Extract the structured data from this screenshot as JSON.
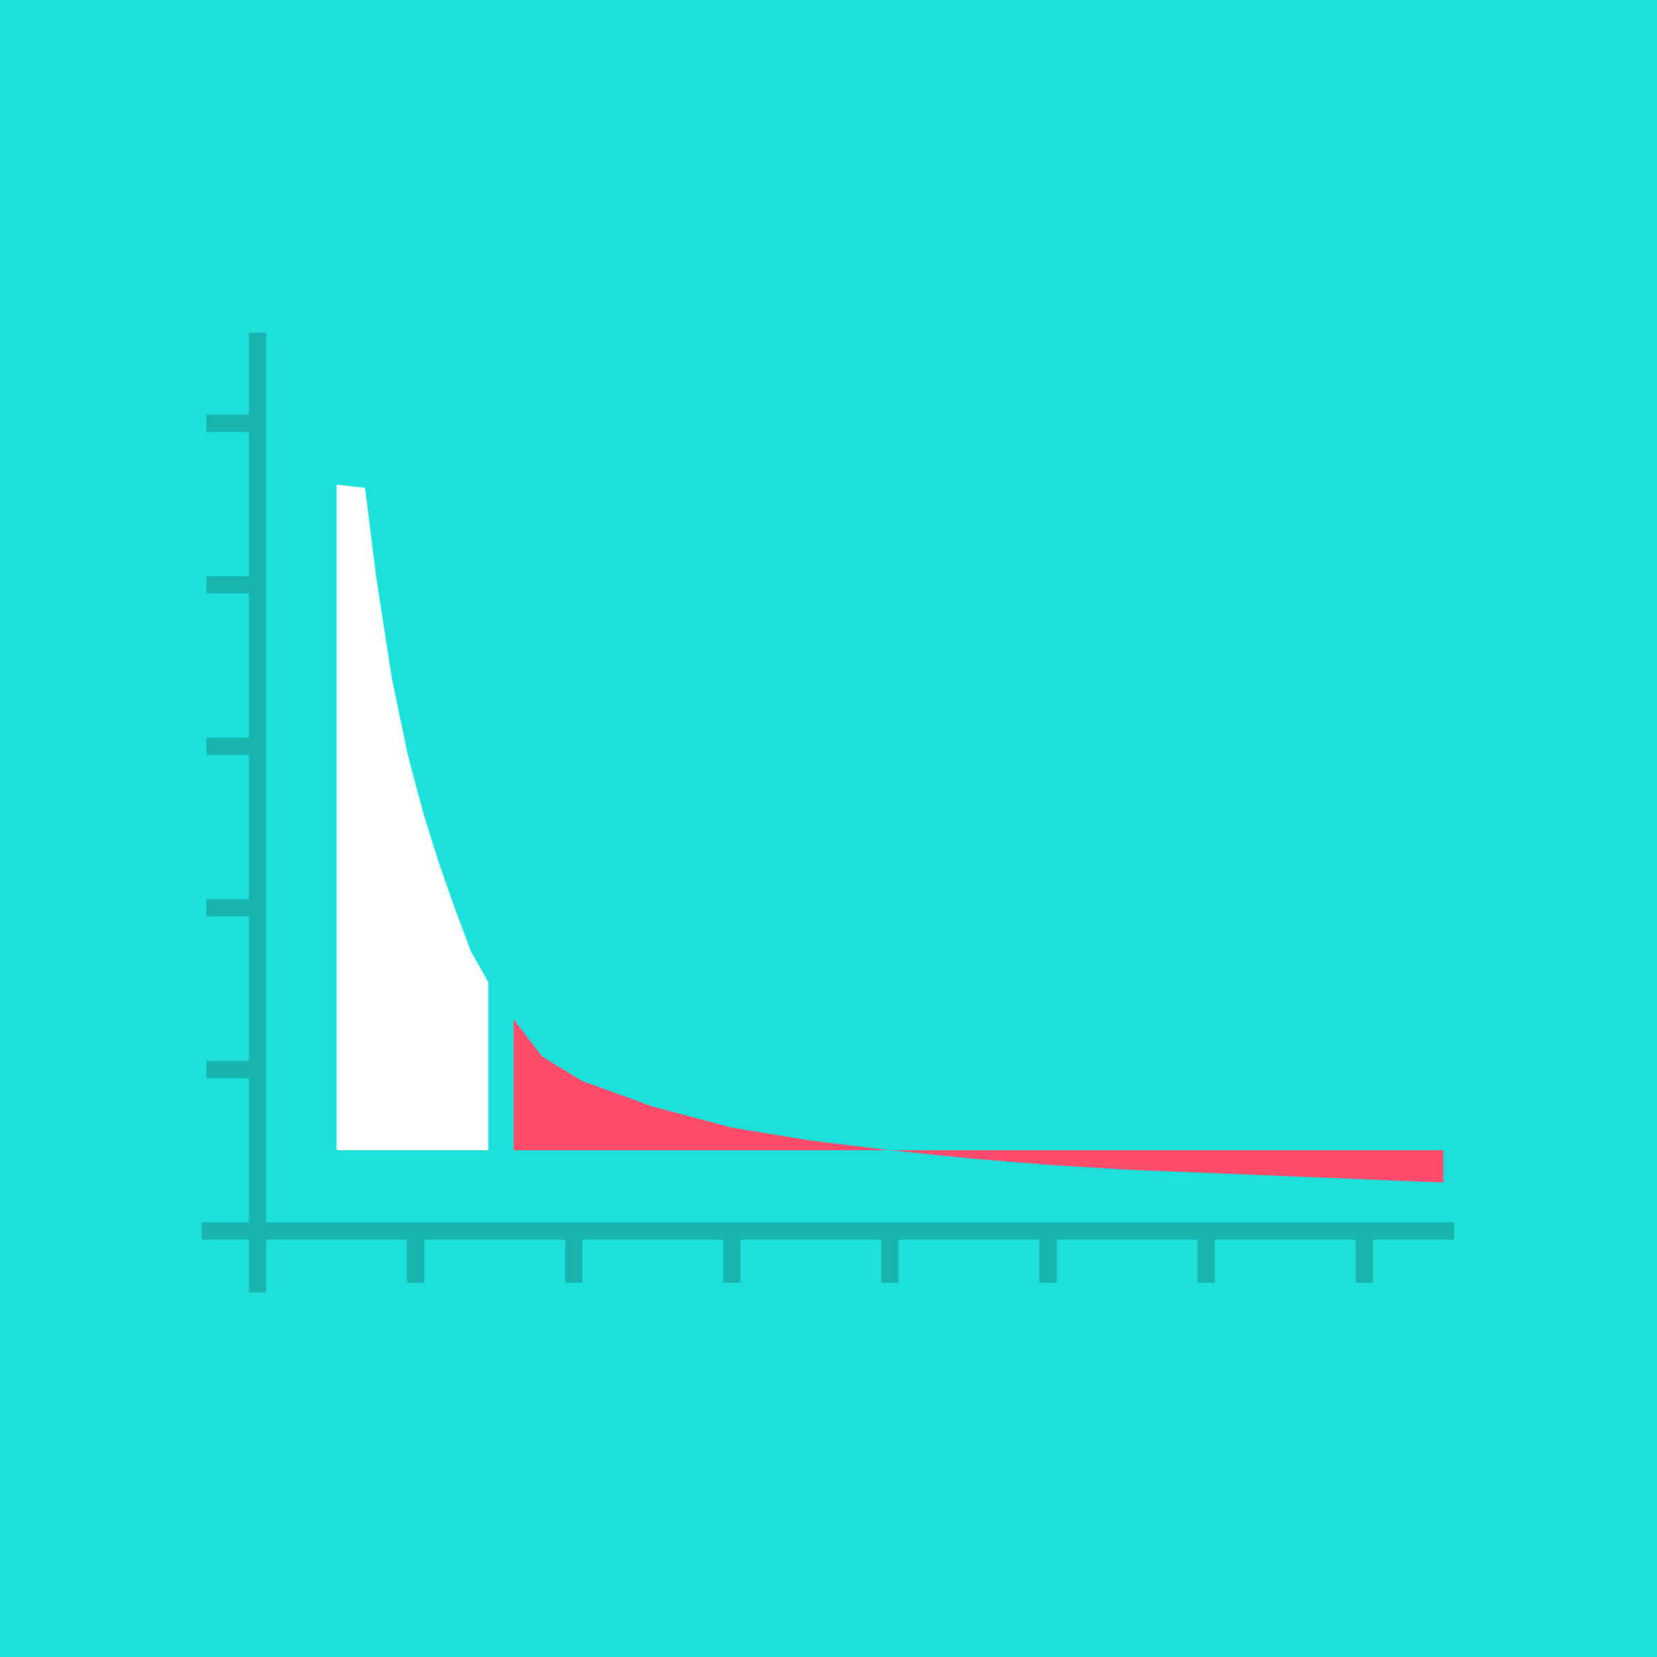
{
  "chart_data": {
    "type": "area",
    "title": "",
    "xlabel": "",
    "ylabel": "",
    "xlim": [
      0,
      8
    ],
    "ylim": [
      0,
      5
    ],
    "x_ticks": [
      1,
      2,
      3,
      4,
      5,
      6,
      7
    ],
    "y_ticks": [
      1,
      2,
      3,
      4,
      5
    ],
    "grid": false,
    "legend": "none",
    "series": [
      {
        "color": "#ffffff",
        "x": [
          0.5,
          0.68,
          0.75,
          0.85,
          0.95,
          1.05,
          1.15,
          1.25,
          1.35,
          1.46
        ],
        "values": [
          4.62,
          4.6,
          4.05,
          3.42,
          2.95,
          2.58,
          2.27,
          1.99,
          1.73,
          1.54
        ]
      },
      {
        "color": "#ff4a6b",
        "x": [
          1.62,
          1.8,
          2.05,
          2.5,
          3.0,
          3.5,
          4.0,
          4.5,
          5.0,
          5.5,
          6.0,
          6.5,
          7.0,
          7.5
        ],
        "values": [
          1.31,
          1.08,
          0.93,
          0.77,
          0.64,
          0.56,
          0.5,
          0.45,
          0.41,
          0.38,
          0.36,
          0.34,
          0.32,
          0.3
        ]
      }
    ],
    "baseline": 0.5,
    "colors": {
      "background": "#1ce1da",
      "axis": "#17b3ad"
    }
  }
}
